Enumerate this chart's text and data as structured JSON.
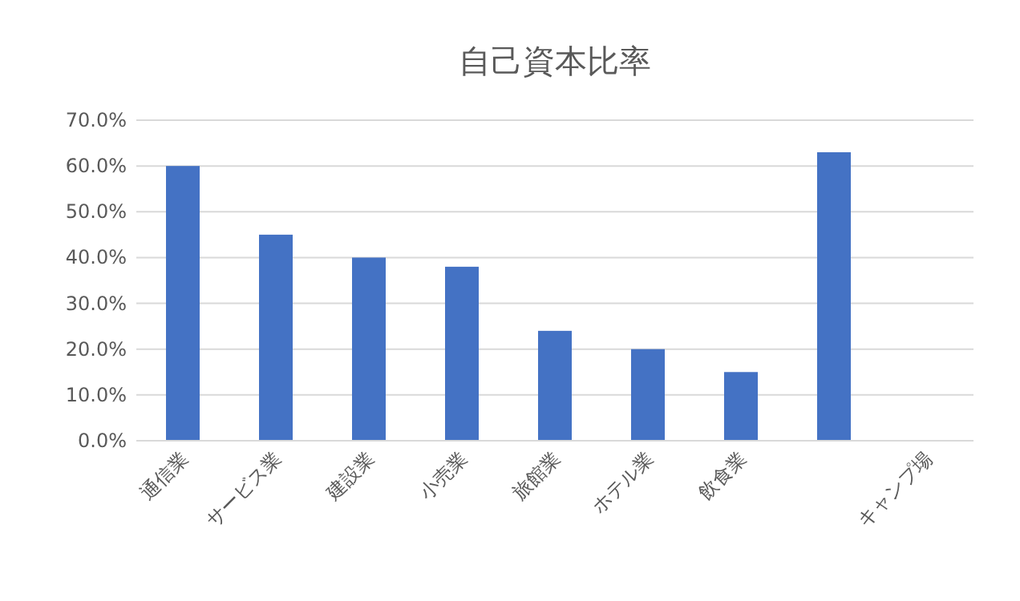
{
  "chart_data": {
    "type": "bar",
    "title": "自己資本比率",
    "categories": [
      "通信業",
      "サービス業",
      "建設業",
      "小売業",
      "旅館業",
      "ホテル業",
      "飲食業",
      null,
      "キャンプ場"
    ],
    "values": [
      60,
      45,
      40,
      38,
      24,
      20,
      15,
      63,
      null
    ],
    "color": "#4472c4",
    "ylim": [
      0,
      70
    ],
    "yticks": [
      {
        "value": 0,
        "label": "0.0%"
      },
      {
        "value": 10,
        "label": "10.0%"
      },
      {
        "value": 20,
        "label": "20.0%"
      },
      {
        "value": 30,
        "label": "30.0%"
      },
      {
        "value": 40,
        "label": "40.0%"
      },
      {
        "value": 50,
        "label": "50.0%"
      },
      {
        "value": 60,
        "label": "60.0%"
      },
      {
        "value": 70,
        "label": "70.0%"
      }
    ],
    "grid": "y"
  }
}
